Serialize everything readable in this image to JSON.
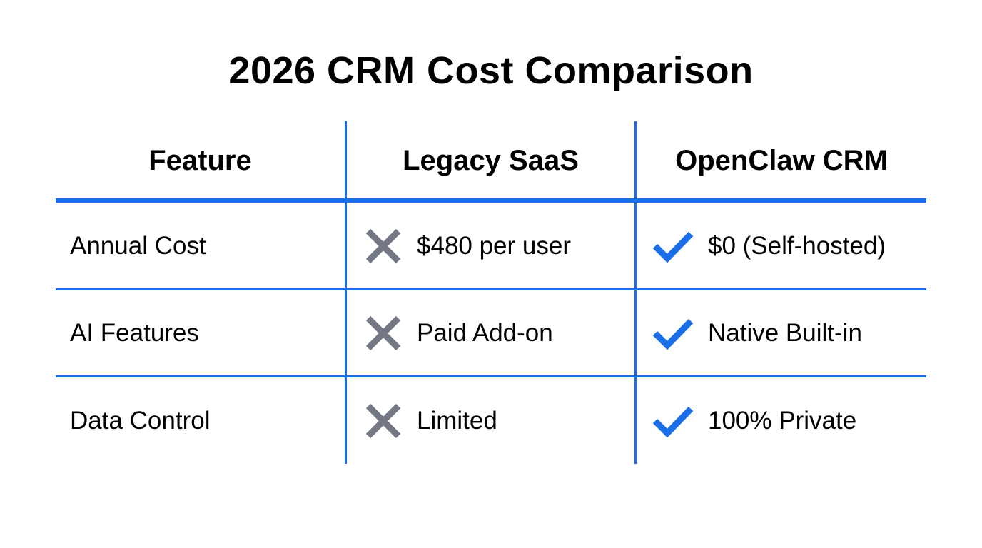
{
  "title": "2026 CRM Cost Comparison",
  "colors": {
    "accent": "#1a6fe8",
    "cross": "#737884"
  },
  "table": {
    "headers": [
      "Feature",
      "Legacy SaaS",
      "OpenClaw CRM"
    ],
    "rows": [
      {
        "feature": "Annual Cost",
        "legacy": "$480 per user",
        "legacy_icon": "x-icon",
        "openclaw": "$0 (Self-hosted)",
        "openclaw_icon": "check-icon"
      },
      {
        "feature": "AI Features",
        "legacy": "Paid Add-on",
        "legacy_icon": "x-icon",
        "openclaw": "Native Built-in",
        "openclaw_icon": "check-icon"
      },
      {
        "feature": "Data Control",
        "legacy": "Limited",
        "legacy_icon": "x-icon",
        "openclaw": "100% Private",
        "openclaw_icon": "check-icon"
      }
    ]
  }
}
